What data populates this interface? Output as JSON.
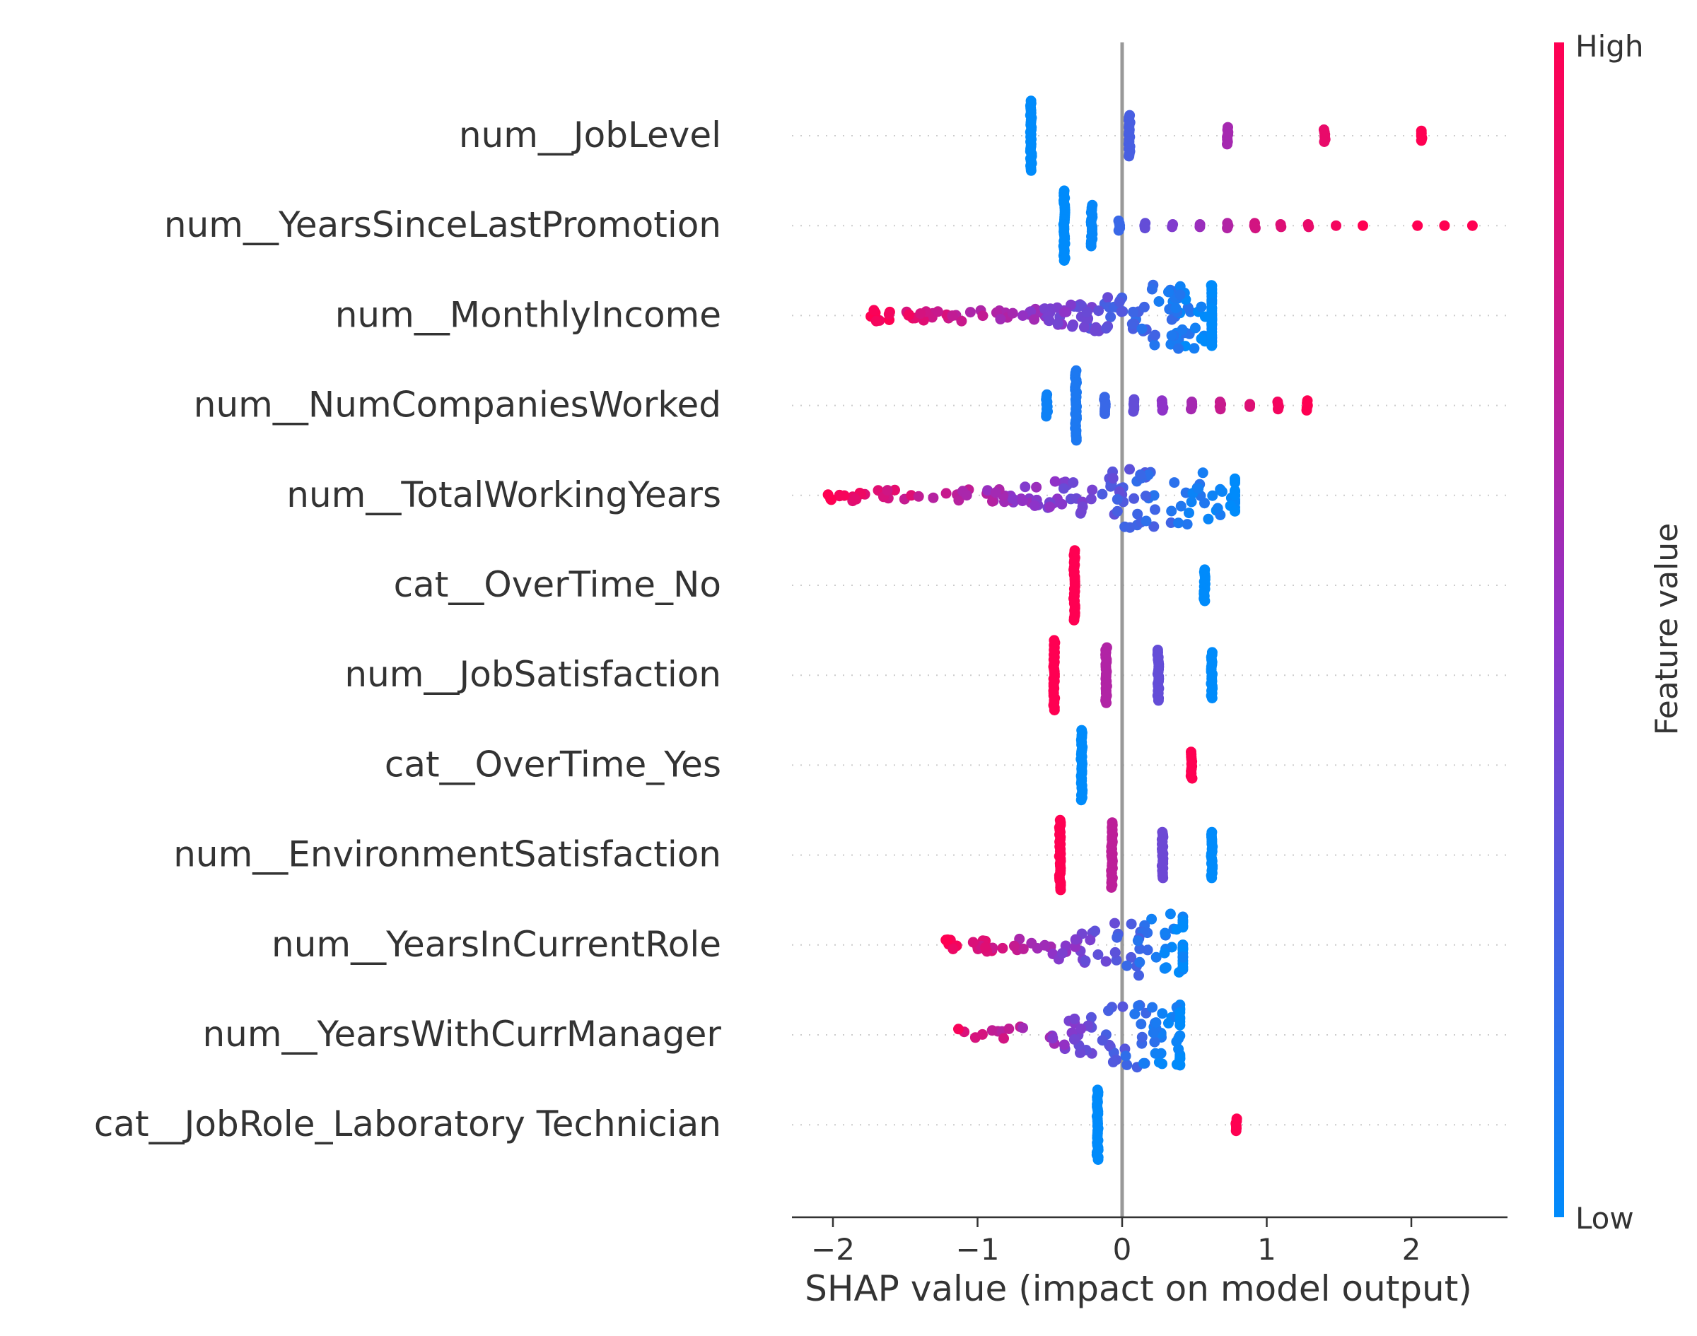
{
  "chart_data": {
    "type": "scatter",
    "subtype": "shap-beeswarm",
    "xlabel": "SHAP value (impact on model output)",
    "xlim": [
      -2.3,
      2.6
    ],
    "xticks": [
      -2,
      -1,
      0,
      1,
      2
    ],
    "xtick_labels": [
      "−2",
      "−1",
      "0",
      "1",
      "2"
    ],
    "grid": false,
    "colorbar": {
      "label": "Feature value",
      "high_label": "High",
      "low_label": "Low",
      "low_color": "#008bfb",
      "high_color": "#ff0052"
    },
    "features": [
      {
        "name": "num__JobLevel",
        "clusters": [
          {
            "x": -0.63,
            "v": 0.0,
            "n": 30
          },
          {
            "x": 0.05,
            "v": 0.25,
            "n": 18
          },
          {
            "x": 0.73,
            "v": 0.6,
            "n": 8
          },
          {
            "x": 1.4,
            "v": 0.9,
            "n": 6
          },
          {
            "x": 2.07,
            "v": 1.0,
            "n": 5
          }
        ]
      },
      {
        "name": "num__YearsSinceLastPromotion",
        "clusters": [
          {
            "x": -0.4,
            "v": 0.0,
            "n": 30
          },
          {
            "x": -0.21,
            "v": 0.02,
            "n": 18
          },
          {
            "x": -0.02,
            "v": 0.2,
            "n": 5
          },
          {
            "x": 0.16,
            "v": 0.35,
            "n": 3
          },
          {
            "x": 0.35,
            "v": 0.45,
            "n": 2
          },
          {
            "x": 0.54,
            "v": 0.55,
            "n": 2
          },
          {
            "x": 0.73,
            "v": 0.65,
            "n": 3
          },
          {
            "x": 0.92,
            "v": 0.8,
            "n": 3
          },
          {
            "x": 1.1,
            "v": 0.85,
            "n": 2
          },
          {
            "x": 1.29,
            "v": 0.9,
            "n": 2
          },
          {
            "x": 1.48,
            "v": 0.95,
            "n": 1
          },
          {
            "x": 1.67,
            "v": 1.0,
            "n": 1
          },
          {
            "x": 2.04,
            "v": 1.0,
            "n": 1
          },
          {
            "x": 2.23,
            "v": 1.0,
            "n": 1
          },
          {
            "x": 2.42,
            "v": 1.0,
            "n": 1
          }
        ]
      },
      {
        "name": "num__MonthlyIncome",
        "cloud": {
          "from": -1.75,
          "to": 0.62,
          "peak": 0.42,
          "count": 190,
          "vlow": 0.0,
          "vhigh": 1.0
        }
      },
      {
        "name": "num__NumCompaniesWorked",
        "clusters": [
          {
            "x": -0.52,
            "v": 0.05,
            "n": 10
          },
          {
            "x": -0.32,
            "v": 0.1,
            "n": 30
          },
          {
            "x": -0.12,
            "v": 0.2,
            "n": 8
          },
          {
            "x": 0.08,
            "v": 0.35,
            "n": 6
          },
          {
            "x": 0.28,
            "v": 0.5,
            "n": 5
          },
          {
            "x": 0.48,
            "v": 0.6,
            "n": 4
          },
          {
            "x": 0.68,
            "v": 0.75,
            "n": 4
          },
          {
            "x": 0.88,
            "v": 0.85,
            "n": 2
          },
          {
            "x": 1.08,
            "v": 0.95,
            "n": 4
          },
          {
            "x": 1.28,
            "v": 1.0,
            "n": 5
          }
        ]
      },
      {
        "name": "num__TotalWorkingYears",
        "cloud": {
          "from": -2.05,
          "to": 0.78,
          "peak": 0.2,
          "count": 150,
          "vlow": 0.0,
          "vhigh": 1.0
        }
      },
      {
        "name": "cat__OverTime_No",
        "clusters": [
          {
            "x": -0.33,
            "v": 1.0,
            "n": 30
          },
          {
            "x": 0.57,
            "v": 0.0,
            "n": 14
          }
        ]
      },
      {
        "name": "num__JobSatisfaction",
        "clusters": [
          {
            "x": -0.47,
            "v": 1.0,
            "n": 30
          },
          {
            "x": -0.11,
            "v": 0.65,
            "n": 24
          },
          {
            "x": 0.25,
            "v": 0.35,
            "n": 22
          },
          {
            "x": 0.62,
            "v": 0.0,
            "n": 20
          }
        ]
      },
      {
        "name": "cat__OverTime_Yes",
        "clusters": [
          {
            "x": -0.28,
            "v": 0.0,
            "n": 30
          },
          {
            "x": 0.48,
            "v": 1.0,
            "n": 12
          }
        ]
      },
      {
        "name": "num__EnvironmentSatisfaction",
        "clusters": [
          {
            "x": -0.43,
            "v": 1.0,
            "n": 30
          },
          {
            "x": -0.07,
            "v": 0.7,
            "n": 28
          },
          {
            "x": 0.28,
            "v": 0.38,
            "n": 20
          },
          {
            "x": 0.62,
            "v": 0.0,
            "n": 20
          }
        ]
      },
      {
        "name": "num__YearsInCurrentRole",
        "cloud": {
          "from": -1.22,
          "to": 0.42,
          "peak": 0.2,
          "count": 95,
          "vlow": 0.0,
          "vhigh": 1.0
        }
      },
      {
        "name": "num__YearsWithCurrManager",
        "cloud": {
          "from": -1.26,
          "to": 0.4,
          "peak": 0.2,
          "count": 95,
          "vlow": 0.0,
          "vhigh": 1.0
        }
      },
      {
        "name": "cat__JobRole_Laboratory Technician",
        "clusters": [
          {
            "x": -0.17,
            "v": 0.0,
            "n": 30
          },
          {
            "x": 0.79,
            "v": 1.0,
            "n": 6
          }
        ]
      }
    ]
  }
}
